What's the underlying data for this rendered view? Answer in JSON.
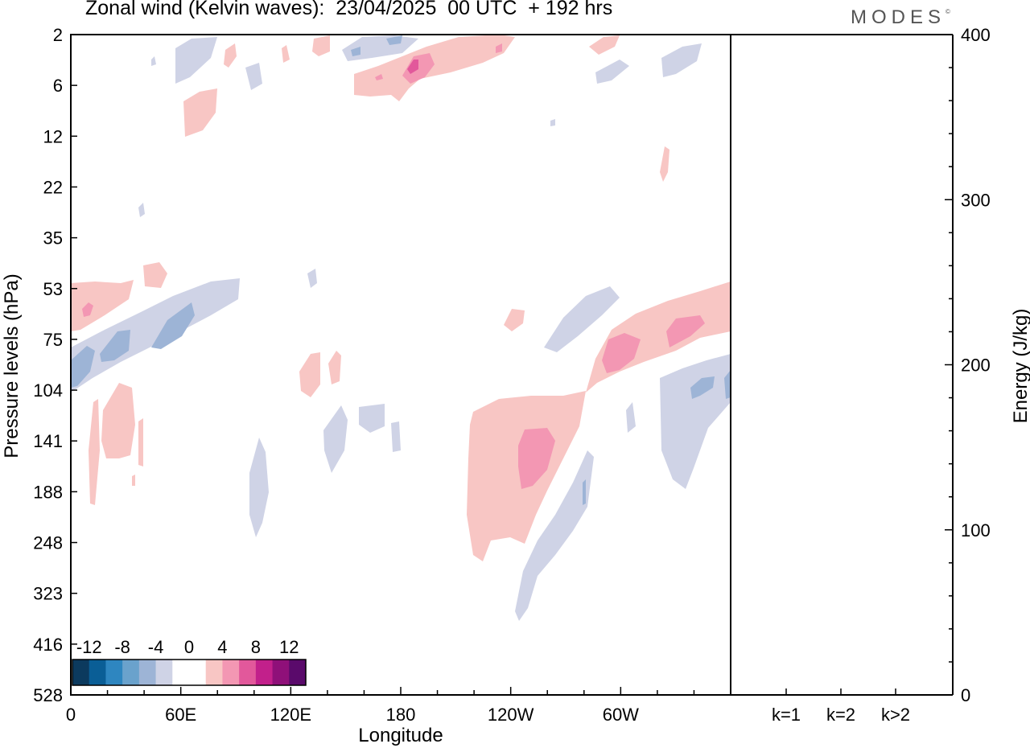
{
  "header": {
    "title": "Zonal wind (Kelvin waves):  23/04/2025  00 UTC  + 192 hrs",
    "logo_text": "MODES"
  },
  "chart_data": [
    {
      "type": "heatmap",
      "title": "Zonal wind (Kelvin waves):  23/04/2025  00 UTC  + 192 hrs",
      "xlabel": "Longitude",
      "ylabel": "Pressure levels (hPa)",
      "x_ticks": [
        "0",
        "60E",
        "120E",
        "180",
        "120W",
        "60W"
      ],
      "y_ticks": [
        "2",
        "6",
        "12",
        "22",
        "35",
        "53",
        "75",
        "104",
        "141",
        "188",
        "248",
        "323",
        "416",
        "528"
      ],
      "y_scale": "log-pressure, reversed",
      "colorbar": {
        "labels": [
          "-12",
          "-8",
          "-4",
          "0",
          "4",
          "8",
          "12"
        ],
        "colors": [
          "#0c3a5e",
          "#0a5e96",
          "#2e86c0",
          "#6aa2cc",
          "#9db4d6",
          "#cfd3e6",
          "#ffffff",
          "#ffffff",
          "#f8c6c4",
          "#f397b3",
          "#e2589b",
          "#c2208b",
          "#8f1079",
          "#5a0a6b"
        ]
      },
      "features": [
        {
          "sign": "positive",
          "max_level": "8",
          "region": "upper stratosphere near 180, 4-8 hPa"
        },
        {
          "sign": "positive",
          "max_level": "8",
          "region": "120W-60W, 75-141 hPa tilted band"
        },
        {
          "sign": "positive",
          "max_level": "8",
          "region": "120W, 141-188 hPa"
        },
        {
          "sign": "negative",
          "max_level": "-8",
          "region": "0-60E, 60-104 hPa tilted band"
        },
        {
          "sign": "negative",
          "max_level": "-8",
          "region": "east of 60W, 104-141 hPa"
        },
        {
          "sign": "negative",
          "max_level": "-4",
          "region": "120W-90W, 188-416 hPa"
        }
      ]
    },
    {
      "type": "bar",
      "categories": [
        "k=1",
        "k=2",
        "k>2"
      ],
      "values": [
        0,
        0,
        0
      ],
      "ylabel": "Energy (J/kg)",
      "ylim": [
        0,
        400
      ],
      "y_ticks": [
        "0",
        "100",
        "200",
        "300",
        "400"
      ]
    }
  ]
}
